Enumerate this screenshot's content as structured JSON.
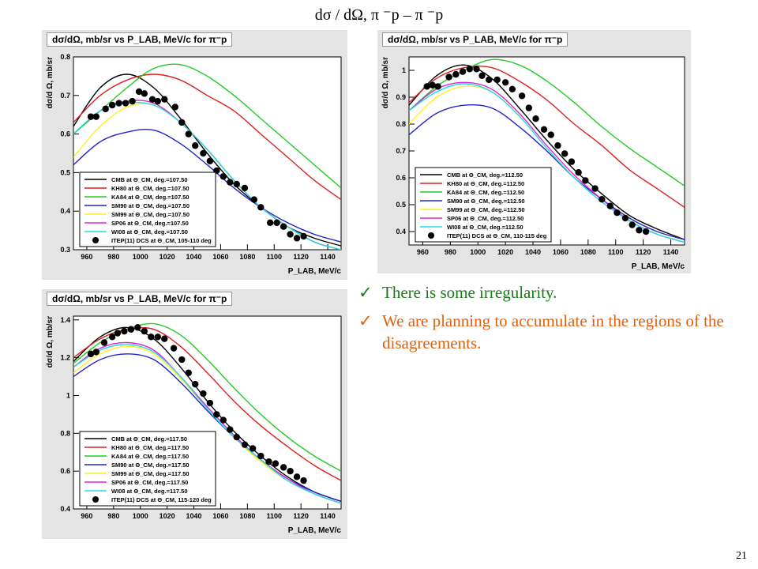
{
  "slide": {
    "title": "dσ / dΩ, π ⁻p – π ⁻p",
    "notes": [
      "There is some irregularity.",
      "We are planning to accumulate in the regions of the disagreements."
    ],
    "check_icon": "✓",
    "page_number": "21"
  },
  "colors": {
    "CMB": "#000000",
    "KH80": "#dd2020",
    "KA84": "#22cc22",
    "SM90": "#2222cc",
    "SM99": "#ffee22",
    "SP06": "#dd22dd",
    "WI08": "#22dddd",
    "ITEP": "#000000",
    "note_green": "#1a7a1a",
    "note_orange": "#e06010"
  },
  "chart_data": [
    {
      "type": "line",
      "title": "dσ/dΩ, mb/sr vs P_LAB, MeV/c for π⁻p",
      "xlabel": "P_LAB, MeV/c",
      "ylabel": "dσ/d Ω, mb/sr",
      "xlim": [
        950,
        1150
      ],
      "ylim": [
        0.3,
        0.8
      ],
      "xticks": [
        960,
        980,
        1000,
        1020,
        1040,
        1060,
        1080,
        1100,
        1120,
        1140
      ],
      "yticks": [
        0.3,
        0.4,
        0.5,
        0.6,
        0.7,
        0.8
      ],
      "legend": [
        "CMB at Θ_CM, deg.=107.50",
        "KH80 at Θ_CM, deg.=107.50",
        "KA84 at Θ_CM, deg.=107.50",
        "SM90 at Θ_CM, deg.=107.50",
        "SM99 at Θ_CM, deg.=107.50",
        "SP06 at Θ_CM, deg.=107.50",
        "WI08 at Θ_CM, deg.=107.50",
        "ITEP(11) DCS at Θ_CM, 105-110 deg"
      ],
      "legend_position": "bottom",
      "x": [
        950,
        970,
        990,
        1010,
        1030,
        1050,
        1070,
        1090,
        1110,
        1130,
        1150
      ],
      "series": [
        {
          "name": "CMB",
          "values": [
            0.62,
            0.72,
            0.755,
            0.72,
            0.64,
            0.55,
            0.47,
            0.41,
            0.36,
            0.33,
            0.31
          ]
        },
        {
          "name": "KH80",
          "values": [
            0.63,
            0.7,
            0.74,
            0.755,
            0.74,
            0.7,
            0.66,
            0.6,
            0.54,
            0.48,
            0.43
          ]
        },
        {
          "name": "KA84",
          "values": [
            0.6,
            0.66,
            0.72,
            0.77,
            0.78,
            0.75,
            0.7,
            0.64,
            0.58,
            0.52,
            0.46
          ]
        },
        {
          "name": "SM90",
          "values": [
            0.52,
            0.58,
            0.605,
            0.61,
            0.575,
            0.52,
            0.46,
            0.41,
            0.37,
            0.34,
            0.32
          ]
        },
        {
          "name": "SM99",
          "values": [
            0.54,
            0.62,
            0.67,
            0.675,
            0.63,
            0.56,
            0.48,
            0.41,
            0.36,
            0.32,
            0.3
          ]
        },
        {
          "name": "SP06",
          "values": [
            0.6,
            0.66,
            0.685,
            0.68,
            0.63,
            0.56,
            0.48,
            0.41,
            0.36,
            0.32,
            0.3
          ]
        },
        {
          "name": "WI08",
          "values": [
            0.6,
            0.66,
            0.68,
            0.675,
            0.63,
            0.56,
            0.48,
            0.41,
            0.36,
            0.32,
            0.3
          ]
        }
      ],
      "points": {
        "name": "ITEP(11) DCS",
        "x": [
          963,
          967,
          974,
          979,
          984,
          989,
          994,
          999,
          1003,
          1009,
          1013,
          1018,
          1026,
          1031,
          1036,
          1041,
          1047,
          1052,
          1057,
          1062,
          1067,
          1072,
          1078,
          1085,
          1090,
          1097,
          1102,
          1107,
          1112,
          1117,
          1122
        ],
        "y": [
          0.645,
          0.645,
          0.665,
          0.675,
          0.68,
          0.68,
          0.685,
          0.71,
          0.705,
          0.69,
          0.685,
          0.69,
          0.67,
          0.63,
          0.6,
          0.57,
          0.55,
          0.53,
          0.505,
          0.49,
          0.475,
          0.47,
          0.46,
          0.43,
          0.41,
          0.37,
          0.37,
          0.36,
          0.34,
          0.33,
          0.335
        ]
      }
    },
    {
      "type": "line",
      "title": "dσ/dΩ, mb/sr vs P_LAB, MeV/c for π⁻p",
      "xlabel": "P_LAB, MeV/c",
      "ylabel": "dσ/d Ω, mb/sr",
      "xlim": [
        950,
        1150
      ],
      "ylim": [
        0.35,
        1.05
      ],
      "xticks": [
        960,
        980,
        1000,
        1020,
        1040,
        1060,
        1080,
        1100,
        1120,
        1140
      ],
      "yticks": [
        0.4,
        0.5,
        0.6,
        0.7,
        0.8,
        0.9,
        1.0
      ],
      "legend": [
        "CMB at Θ_CM, deg.=112.50",
        "KH80 at Θ_CM, deg.=112.50",
        "KA84 at Θ_CM, deg.=112.50",
        "SM90 at Θ_CM, deg.=112.50",
        "SM99 at Θ_CM, deg.=112.50",
        "SP06 at Θ_CM, deg.=112.50",
        "WI08 at Θ_CM, deg.=112.50",
        "ITEP(11) DCS at Θ_CM, 110-115 deg"
      ],
      "legend_position": "bottom",
      "x": [
        950,
        970,
        990,
        1010,
        1030,
        1050,
        1070,
        1090,
        1110,
        1130,
        1150
      ],
      "series": [
        {
          "name": "CMB",
          "values": [
            0.87,
            0.98,
            1.02,
            0.97,
            0.86,
            0.74,
            0.63,
            0.54,
            0.46,
            0.41,
            0.37
          ]
        },
        {
          "name": "KH80",
          "values": [
            0.88,
            0.97,
            1.01,
            1.01,
            0.96,
            0.89,
            0.8,
            0.72,
            0.63,
            0.56,
            0.49
          ]
        },
        {
          "name": "KA84",
          "values": [
            0.85,
            0.94,
            1.0,
            1.04,
            1.02,
            0.96,
            0.88,
            0.79,
            0.71,
            0.64,
            0.57
          ]
        },
        {
          "name": "SM90",
          "values": [
            0.76,
            0.84,
            0.87,
            0.86,
            0.79,
            0.7,
            0.6,
            0.52,
            0.45,
            0.4,
            0.37
          ]
        },
        {
          "name": "SM99",
          "values": [
            0.8,
            0.9,
            0.94,
            0.92,
            0.83,
            0.71,
            0.6,
            0.51,
            0.44,
            0.39,
            0.36
          ]
        },
        {
          "name": "SP06",
          "values": [
            0.85,
            0.93,
            0.955,
            0.93,
            0.84,
            0.72,
            0.61,
            0.52,
            0.44,
            0.39,
            0.36
          ]
        },
        {
          "name": "WI08",
          "values": [
            0.85,
            0.92,
            0.95,
            0.92,
            0.83,
            0.71,
            0.6,
            0.51,
            0.44,
            0.39,
            0.36
          ]
        }
      ],
      "points": {
        "name": "ITEP(11) DCS",
        "x": [
          963,
          967,
          971,
          979,
          984,
          989,
          994,
          999,
          1003,
          1008,
          1014,
          1020,
          1025,
          1032,
          1037,
          1042,
          1048,
          1053,
          1058,
          1063,
          1068,
          1073,
          1078,
          1085,
          1090,
          1096,
          1101,
          1107,
          1112,
          1117,
          1122
        ],
        "y": [
          0.94,
          0.945,
          0.94,
          0.975,
          0.985,
          0.995,
          1.005,
          1.005,
          0.98,
          0.965,
          0.965,
          0.955,
          0.93,
          0.905,
          0.86,
          0.82,
          0.78,
          0.76,
          0.72,
          0.69,
          0.66,
          0.62,
          0.59,
          0.56,
          0.52,
          0.495,
          0.47,
          0.45,
          0.425,
          0.405,
          0.4
        ]
      }
    },
    {
      "type": "line",
      "title": "dσ/dΩ, mb/sr vs P_LAB, MeV/c for π⁻p",
      "xlabel": "P_LAB, MeV/c",
      "ylabel": "dσ/d Ω, mb/sr",
      "xlim": [
        950,
        1150
      ],
      "ylim": [
        0.4,
        1.42
      ],
      "xticks": [
        960,
        980,
        1000,
        1020,
        1040,
        1060,
        1080,
        1100,
        1120,
        1140
      ],
      "yticks": [
        0.4,
        0.6,
        0.8,
        1.0,
        1.2,
        1.4
      ],
      "legend": [
        "CMB at Θ_CM, deg.=117.50",
        "KH80 at Θ_CM, deg.=117.50",
        "KA84 at Θ_CM, deg.=117.50",
        "SM90 at Θ_CM, deg.=117.50",
        "SM99 at Θ_CM, deg.=117.50",
        "SP06 at Θ_CM, deg.=117.50",
        "WI08 at Θ_CM, deg.=117.50",
        "ITEP(11) DCS at Θ_CM, 115-120 deg"
      ],
      "legend_position": "bottom",
      "x": [
        950,
        970,
        990,
        1010,
        1030,
        1050,
        1070,
        1090,
        1110,
        1130,
        1150
      ],
      "series": [
        {
          "name": "CMB",
          "values": [
            1.18,
            1.31,
            1.36,
            1.3,
            1.15,
            0.97,
            0.81,
            0.68,
            0.57,
            0.49,
            0.44
          ]
        },
        {
          "name": "KH80",
          "values": [
            1.2,
            1.3,
            1.35,
            1.35,
            1.26,
            1.12,
            0.97,
            0.84,
            0.73,
            0.63,
            0.55
          ]
        },
        {
          "name": "KA84",
          "values": [
            1.17,
            1.28,
            1.35,
            1.38,
            1.32,
            1.19,
            1.04,
            0.9,
            0.78,
            0.68,
            0.6
          ]
        },
        {
          "name": "SM90",
          "values": [
            1.1,
            1.19,
            1.22,
            1.19,
            1.07,
            0.92,
            0.78,
            0.66,
            0.56,
            0.49,
            0.44
          ]
        },
        {
          "name": "SM99",
          "values": [
            1.12,
            1.22,
            1.26,
            1.22,
            1.09,
            0.93,
            0.78,
            0.65,
            0.55,
            0.48,
            0.43
          ]
        },
        {
          "name": "SP06",
          "values": [
            1.15,
            1.25,
            1.28,
            1.24,
            1.1,
            0.94,
            0.79,
            0.66,
            0.56,
            0.48,
            0.43
          ]
        },
        {
          "name": "WI08",
          "values": [
            1.15,
            1.24,
            1.27,
            1.23,
            1.1,
            0.93,
            0.78,
            0.66,
            0.55,
            0.48,
            0.43
          ]
        }
      ],
      "points": {
        "name": "ITEP(11) DCS",
        "x": [
          963,
          967,
          973,
          979,
          983,
          988,
          993,
          998,
          1003,
          1008,
          1013,
          1018,
          1025,
          1031,
          1036,
          1041,
          1047,
          1052,
          1057,
          1062,
          1067,
          1072,
          1078,
          1084,
          1090,
          1096,
          1101,
          1107,
          1112,
          1117,
          1122
        ],
        "y": [
          1.22,
          1.23,
          1.28,
          1.31,
          1.33,
          1.34,
          1.35,
          1.36,
          1.34,
          1.31,
          1.31,
          1.3,
          1.25,
          1.19,
          1.12,
          1.06,
          1.01,
          0.96,
          0.9,
          0.87,
          0.82,
          0.78,
          0.74,
          0.72,
          0.68,
          0.65,
          0.64,
          0.62,
          0.6,
          0.57,
          0.55
        ]
      }
    }
  ]
}
